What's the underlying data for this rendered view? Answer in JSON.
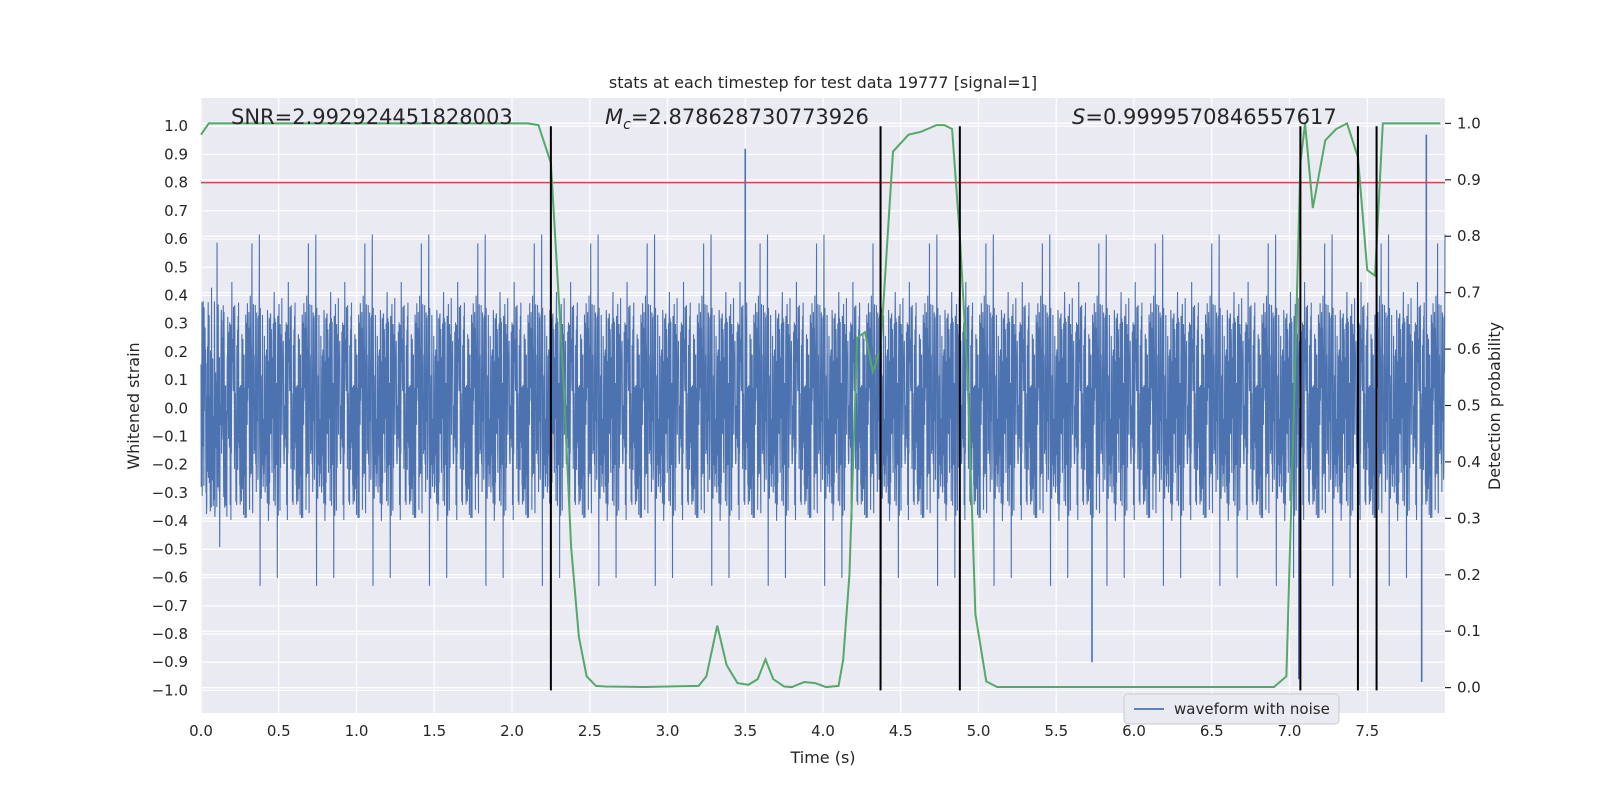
{
  "chart_data": {
    "type": "line",
    "title": "stats at each timestep for test data 19777 [signal=1]",
    "xlabel": "Time (s)",
    "ylabel_left": "Whitened strain",
    "ylabel_right": "Detection probability",
    "xlim": [
      0.0,
      8.0
    ],
    "ylim_left": [
      -1.08,
      1.1
    ],
    "ylim_right": [
      -0.045,
      1.045
    ],
    "xticks": [
      0.0,
      0.5,
      1.0,
      1.5,
      2.0,
      2.5,
      3.0,
      3.5,
      4.0,
      4.5,
      5.0,
      5.5,
      6.0,
      6.5,
      7.0,
      7.5
    ],
    "xtick_labels": [
      "0.0",
      "0.5",
      "1.0",
      "1.5",
      "2.0",
      "2.5",
      "3.0",
      "3.5",
      "4.0",
      "4.5",
      "5.0",
      "5.5",
      "6.0",
      "6.5",
      "7.0",
      "7.5"
    ],
    "yticks_left": [
      1.0,
      0.9,
      0.8,
      0.7,
      0.6,
      0.5,
      0.4,
      0.3,
      0.2,
      0.1,
      0.0,
      -0.1,
      -0.2,
      -0.3,
      -0.4,
      -0.5,
      -0.6,
      -0.7,
      -0.8,
      -0.9,
      -1.0
    ],
    "ytick_labels_left": [
      "1.0",
      "0.9",
      "0.8",
      "0.7",
      "0.6",
      "0.5",
      "0.4",
      "0.3",
      "0.2",
      "0.1",
      "0.0",
      "−0.1",
      "−0.2",
      "−0.3",
      "−0.4",
      "−0.5",
      "−0.6",
      "−0.7",
      "−0.8",
      "−0.9",
      "−1.0"
    ],
    "yticks_right": [
      1.0,
      0.9,
      0.8,
      0.7,
      0.6,
      0.5,
      0.4,
      0.3,
      0.2,
      0.1,
      0.0
    ],
    "ytick_labels_right": [
      "1.0",
      "0.9",
      "0.8",
      "0.7",
      "0.6",
      "0.5",
      "0.4",
      "0.3",
      "0.2",
      "0.1",
      "0.0"
    ],
    "grid": true,
    "annotations": {
      "snr": "SNR=2.992924451828003",
      "mc_symbol": "M",
      "mc_sub": "c",
      "mc_value": "=2.878628730773926",
      "s_symbol": "S",
      "s_value": "=0.9999570846557617"
    },
    "threshold": {
      "name": "detection threshold",
      "value": 0.8,
      "color": "#c44e52"
    },
    "vertical_markers_x": [
      2.25,
      4.37,
      4.88,
      7.07,
      7.44,
      7.56
    ],
    "series": [
      {
        "name": "waveform with noise",
        "axis": "left",
        "color": "#4c72b0",
        "style": "noisy-waveform",
        "envelope_typical": 0.4,
        "envelope_max": 1.0,
        "notable_peaks": [
          {
            "x": 3.5,
            "y": 0.92
          },
          {
            "x": 7.88,
            "y": 0.97
          },
          {
            "x": 7.06,
            "y": -0.96
          },
          {
            "x": 5.73,
            "y": -0.9
          },
          {
            "x": 7.85,
            "y": -0.97
          }
        ]
      },
      {
        "name": "Detection probability",
        "axis": "right",
        "color": "#55a868",
        "x": [
          0.0,
          0.05,
          0.15,
          0.3,
          0.6,
          1.0,
          1.5,
          2.0,
          2.1,
          2.17,
          2.25,
          2.33,
          2.38,
          2.43,
          2.48,
          2.54,
          2.6,
          2.85,
          3.0,
          3.2,
          3.25,
          3.32,
          3.38,
          3.45,
          3.52,
          3.58,
          3.63,
          3.68,
          3.75,
          3.8,
          3.88,
          3.95,
          4.02,
          4.1,
          4.13,
          4.17,
          4.22,
          4.27,
          4.32,
          4.37,
          4.45,
          4.55,
          4.63,
          4.73,
          4.78,
          4.83,
          4.88,
          4.93,
          4.98,
          5.05,
          5.12,
          5.18,
          5.5,
          6.0,
          6.5,
          6.9,
          6.98,
          7.03,
          7.07,
          7.1,
          7.15,
          7.23,
          7.3,
          7.37,
          7.44,
          7.5,
          7.55,
          7.6,
          7.65,
          7.97
        ],
        "values": [
          0.98,
          1.0,
          1.0,
          1.0,
          1.0,
          1.0,
          1.0,
          1.0,
          1.0,
          0.997,
          0.93,
          0.55,
          0.25,
          0.09,
          0.02,
          0.003,
          0.002,
          0.001,
          0.002,
          0.003,
          0.02,
          0.11,
          0.04,
          0.008,
          0.005,
          0.015,
          0.05,
          0.015,
          0.002,
          0.001,
          0.01,
          0.008,
          0.001,
          0.003,
          0.05,
          0.2,
          0.62,
          0.63,
          0.56,
          0.6,
          0.95,
          0.98,
          0.985,
          0.997,
          0.997,
          0.99,
          0.8,
          0.55,
          0.13,
          0.011,
          0.001,
          0.001,
          0.001,
          0.001,
          0.001,
          0.001,
          0.02,
          0.51,
          0.93,
          1.0,
          0.85,
          0.97,
          0.99,
          1.0,
          0.94,
          0.74,
          0.73,
          1.0,
          1.0,
          1.0
        ]
      }
    ],
    "legend": {
      "position": "bottom-right",
      "entries": [
        "waveform with noise"
      ]
    }
  }
}
